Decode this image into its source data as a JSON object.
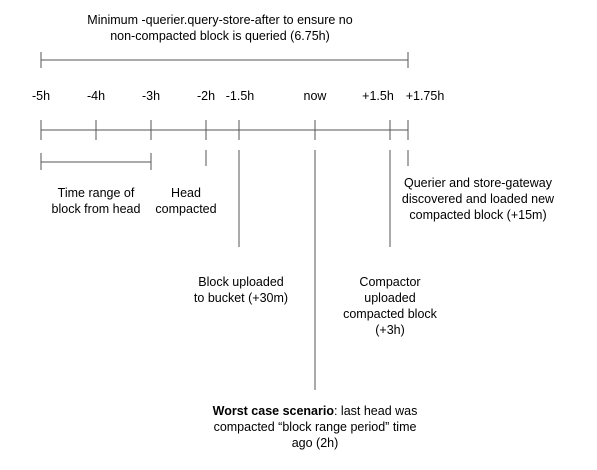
{
  "title": {
    "line1": "Minimum -querier.query-store-after to ensure no",
    "line2": "non-compacted block is queried (6.75h)"
  },
  "ticks": [
    {
      "id": "m5h",
      "label": "-5h"
    },
    {
      "id": "m4h",
      "label": "-4h"
    },
    {
      "id": "m3h",
      "label": "-3h"
    },
    {
      "id": "m2h",
      "label": "-2h"
    },
    {
      "id": "m1_5h",
      "label": "-1.5h"
    },
    {
      "id": "now",
      "label": "now"
    },
    {
      "id": "p1_5h",
      "label": "+1.5h"
    },
    {
      "id": "p1_75h",
      "label": "+1.75h"
    }
  ],
  "annotations": {
    "time_range": {
      "line1": "Time range of",
      "line2": "block from head"
    },
    "head_compacted": {
      "line1": "Head",
      "line2": "compacted"
    },
    "querier": {
      "line1": "Querier and store-gateway",
      "line2": "discovered and loaded new",
      "line3": "compacted block (+15m)"
    },
    "block_uploaded": {
      "line1": "Block uploaded",
      "line2": "to bucket (+30m)"
    },
    "compactor": {
      "line1": "Compactor",
      "line2": "uploaded",
      "line3": "compacted block",
      "line4": "(+3h)"
    },
    "worst_case": {
      "bold": "Worst case scenario",
      "line1_rest": ": last head was",
      "line2": "compacted “block range period” time",
      "line3": "ago (2h)"
    }
  }
}
